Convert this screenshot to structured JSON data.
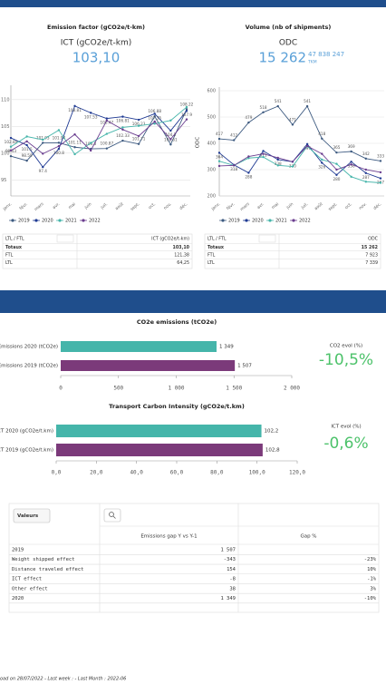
{
  "panels": [
    {
      "title": "Emission factor (gCO2e/t-km)",
      "subtitle": "ICT (gCO2e/t-km)",
      "value": "103,10"
    },
    {
      "title": "Volume (nb of shipments)",
      "subtitle": "ODC",
      "value": "15 262",
      "secondary": "47 838 247",
      "secondary_unit": "TKM"
    }
  ],
  "chart_data": [
    {
      "type": "line",
      "categories": [
        "janv.",
        "févr.",
        "mars",
        "avr.",
        "mai",
        "juin",
        "juil.",
        "août",
        "sept.",
        "oct.",
        "nov.",
        "déc."
      ],
      "ylim": [
        92,
        112
      ],
      "yticks": [
        95,
        100,
        105,
        110
      ],
      "grid": true,
      "legend": "bottom",
      "series": [
        {
          "name": "2019",
          "color": "#3d5a80",
          "values": [
            99.43,
            98.59,
            101.93,
            101.94,
            101.11,
            100.8,
            100.87,
            102.33,
            101.71,
            106.88,
            101.61,
            108.22
          ]
        },
        {
          "name": "2020",
          "color": "#1f3a93",
          "values": [
            102.84,
            101.5,
            97.4,
            100.8,
            108.81,
            107.53,
            106.47,
            106.81,
            106.23,
            107.35,
            104.2,
            107.9
          ]
        },
        {
          "name": "2021",
          "color": "#45b5aa",
          "values": [
            101.2,
            103.1,
            102.5,
            104.3,
            99.8,
            101.9,
            103.6,
            104.8,
            105.1,
            105.5,
            106.1,
            108.6
          ]
        },
        {
          "name": "2022",
          "color": "#6a3d8f",
          "values": [
            100.5,
            102.2,
            99.9,
            101.3,
            103.5,
            100.48,
            106.1,
            104.4,
            103.2,
            105.9,
            102.6,
            106.3
          ]
        }
      ]
    },
    {
      "type": "line",
      "y_label": "ODC",
      "categories": [
        "janv.",
        "févr.",
        "mars",
        "avr.",
        "mai",
        "juin",
        "juil.",
        "août",
        "sept.",
        "oct.",
        "nov.",
        "déc."
      ],
      "ylim": [
        200,
        600
      ],
      "yticks": [
        200,
        300,
        400,
        500,
        600
      ],
      "grid": true,
      "legend": "bottom",
      "series": [
        {
          "name": "2019",
          "color": "#3d5a80",
          "values": [
            417,
            412,
            479,
            518,
            541,
            471,
            541,
            418,
            365,
            369,
            342,
            333
          ]
        },
        {
          "name": "2020",
          "color": "#1f3a93",
          "values": [
            364,
            318,
            288,
            371,
            338,
            330,
            397,
            326,
            280,
            330,
            287,
            267
          ]
        },
        {
          "name": "2021",
          "color": "#45b5aa",
          "values": [
            332,
            316,
            344,
            348,
            316,
            312,
            389,
            338,
            322,
            273,
            254,
            250
          ]
        },
        {
          "name": "2022",
          "color": "#6a3d8f",
          "values": [
            314,
            316,
            350,
            360,
            345,
            330,
            390,
            360,
            300,
            320,
            300,
            290
          ]
        }
      ]
    },
    {
      "type": "hbar",
      "title": "CO2e emissions (tCO2e)",
      "categories": [
        "Emissions 2020 (tCO2e)",
        "Emissions 2019 (tCO2e)"
      ],
      "values": [
        1349,
        1507
      ],
      "value_labels": [
        "1 349",
        "1 507"
      ],
      "colors": [
        "#45b5aa",
        "#7b3a7a"
      ],
      "xlim": [
        0,
        2000
      ],
      "xticks": [
        0,
        500,
        {
          "value": 1000,
          "label": "1 000"
        },
        {
          "value": 1500,
          "label": "1 500"
        },
        {
          "value": 2000,
          "label": "2 000"
        }
      ]
    },
    {
      "type": "hbar",
      "title": "Transport Carbon Intensity (gCO2e/t.km)",
      "categories": [
        "ICT 2020 (gCO2e/t.km)",
        "ICT 2019 (gCO2e/t.km)"
      ],
      "values": [
        102.2,
        102.8
      ],
      "value_labels": [
        "102,2",
        "102,8"
      ],
      "colors": [
        "#45b5aa",
        "#7b3a7a"
      ],
      "xlim": [
        0,
        120
      ],
      "xticks": [
        {
          "value": 0,
          "label": "0,0"
        },
        {
          "value": 20,
          "label": "20,0"
        },
        {
          "value": 40,
          "label": "40,0"
        },
        {
          "value": 60,
          "label": "60,0"
        },
        {
          "value": 80,
          "label": "80,0"
        },
        {
          "value": 100,
          "label": "100,0"
        },
        {
          "value": 120,
          "label": "120,0"
        }
      ]
    }
  ],
  "kpis": [
    {
      "label": "CO2 evol (%)",
      "value": "-10,5%"
    },
    {
      "label": "ICT evol (%)",
      "value": "-0,6%"
    }
  ],
  "mini_tables": [
    {
      "headers": [
        "LTL / FTL",
        "ICT (gCO2e/t-km)"
      ],
      "rows": [
        [
          "Totaux",
          "103,10"
        ],
        [
          "FTL",
          "121,38"
        ],
        [
          "LTL",
          "64,25"
        ]
      ]
    },
    {
      "headers": [
        "LTL / FTL",
        "ODC"
      ],
      "rows": [
        [
          "Totaux",
          "15 262"
        ],
        [
          "FTL",
          "7 923"
        ],
        [
          "LTL",
          "7 339"
        ]
      ]
    }
  ],
  "table": {
    "button": "Valeurs",
    "headers": [
      "Emissions gap Y vs Y-1",
      "Gap %"
    ],
    "rows": [
      [
        "2019",
        "1 507",
        ""
      ],
      [
        "Weight shipped effect",
        "-343",
        "-23%"
      ],
      [
        "Distance traveled effect",
        "154",
        "10%"
      ],
      [
        "ICT effect",
        "-8",
        "-1%"
      ],
      [
        "Other effect",
        "38",
        "3%"
      ],
      [
        "2020",
        "1 349",
        "-10%"
      ]
    ]
  },
  "footer": "oad on 28/07/2022 - Last week : - Last Month : 2022-06"
}
